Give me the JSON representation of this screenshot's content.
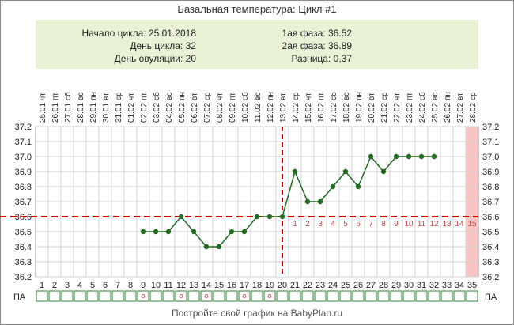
{
  "title": "Базальная температура: Цикл #1",
  "info": {
    "cycle_start": "Начало цикла: 25.01.2018",
    "cycle_day": "День цикла: 32",
    "ovulation_day": "День овуляции: 20",
    "phase1": "1ая фаза: 36.52",
    "phase2": "2ая фаза: 36.89",
    "difference": "Разница: 0,37"
  },
  "footer": "Постройте свой график на BabyPlan.ru",
  "chart_data": {
    "type": "line",
    "xlabel": "",
    "ylabel": "",
    "ylim": [
      36.2,
      37.2
    ],
    "y_ticks": [
      "37.2",
      "37.1",
      "37.0",
      "36.9",
      "36.8",
      "36.7",
      "36.6",
      "36.5",
      "36.4",
      "36.3",
      "36.2"
    ],
    "grid": true,
    "days": [
      1,
      2,
      3,
      4,
      5,
      6,
      7,
      8,
      9,
      10,
      11,
      12,
      13,
      14,
      15,
      16,
      17,
      18,
      19,
      20,
      21,
      22,
      23,
      24,
      25,
      26,
      27,
      28,
      29,
      30,
      31,
      32,
      33,
      34,
      35
    ],
    "weekdays": [
      "чт",
      "пт",
      "сб",
      "вс",
      "пн",
      "вт",
      "ср",
      "чт",
      "пт",
      "сб",
      "вс",
      "пн",
      "вт",
      "ср",
      "чт",
      "пт",
      "сб",
      "вс",
      "пн",
      "вт",
      "ср",
      "чт",
      "пт",
      "сб",
      "вс",
      "пн",
      "вт",
      "ср",
      "чт",
      "пт",
      "сб",
      "вс",
      "пн",
      "вт",
      "ср"
    ],
    "dates": [
      "25.01",
      "26.01",
      "27.01",
      "28.01",
      "29.01",
      "30.01",
      "31.01",
      "01.02",
      "02.02",
      "03.02",
      "04.02",
      "05.02",
      "06.02",
      "07.02",
      "08.02",
      "09.02",
      "10.02",
      "11.02",
      "12.02",
      "13.02",
      "14.02",
      "15.02",
      "16.02",
      "17.02",
      "18.02",
      "19.02",
      "20.02",
      "21.02",
      "22.02",
      "23.02",
      "24.02",
      "25.02",
      "26.02",
      "27.02",
      "28.02"
    ],
    "series": [
      {
        "values": [
          null,
          null,
          null,
          null,
          null,
          null,
          null,
          null,
          36.5,
          36.5,
          36.5,
          36.6,
          36.5,
          36.4,
          36.4,
          36.5,
          36.5,
          36.6,
          36.6,
          36.6,
          36.9,
          36.7,
          36.7,
          36.8,
          36.9,
          36.8,
          37.0,
          36.9,
          37.0,
          37.0,
          37.0,
          37.0,
          null,
          null,
          null
        ],
        "color": "#1f6b1f"
      }
    ],
    "coverline": 36.6,
    "coverline_color": "#cc0000",
    "ovulation_day": 20,
    "phase2_day_labels": [
      "1",
      "2",
      "3",
      "4",
      "5",
      "6",
      "7",
      "8",
      "9",
      "10",
      "11",
      "12",
      "13",
      "14",
      "15"
    ],
    "phase2_label_color": "#cc4444",
    "highlight_day": 35,
    "highlight_color": "#f8c4c4",
    "pa_label": "ПА",
    "pa_marked_days": [
      9,
      12,
      14,
      17,
      19
    ],
    "pa_mark": "o"
  }
}
